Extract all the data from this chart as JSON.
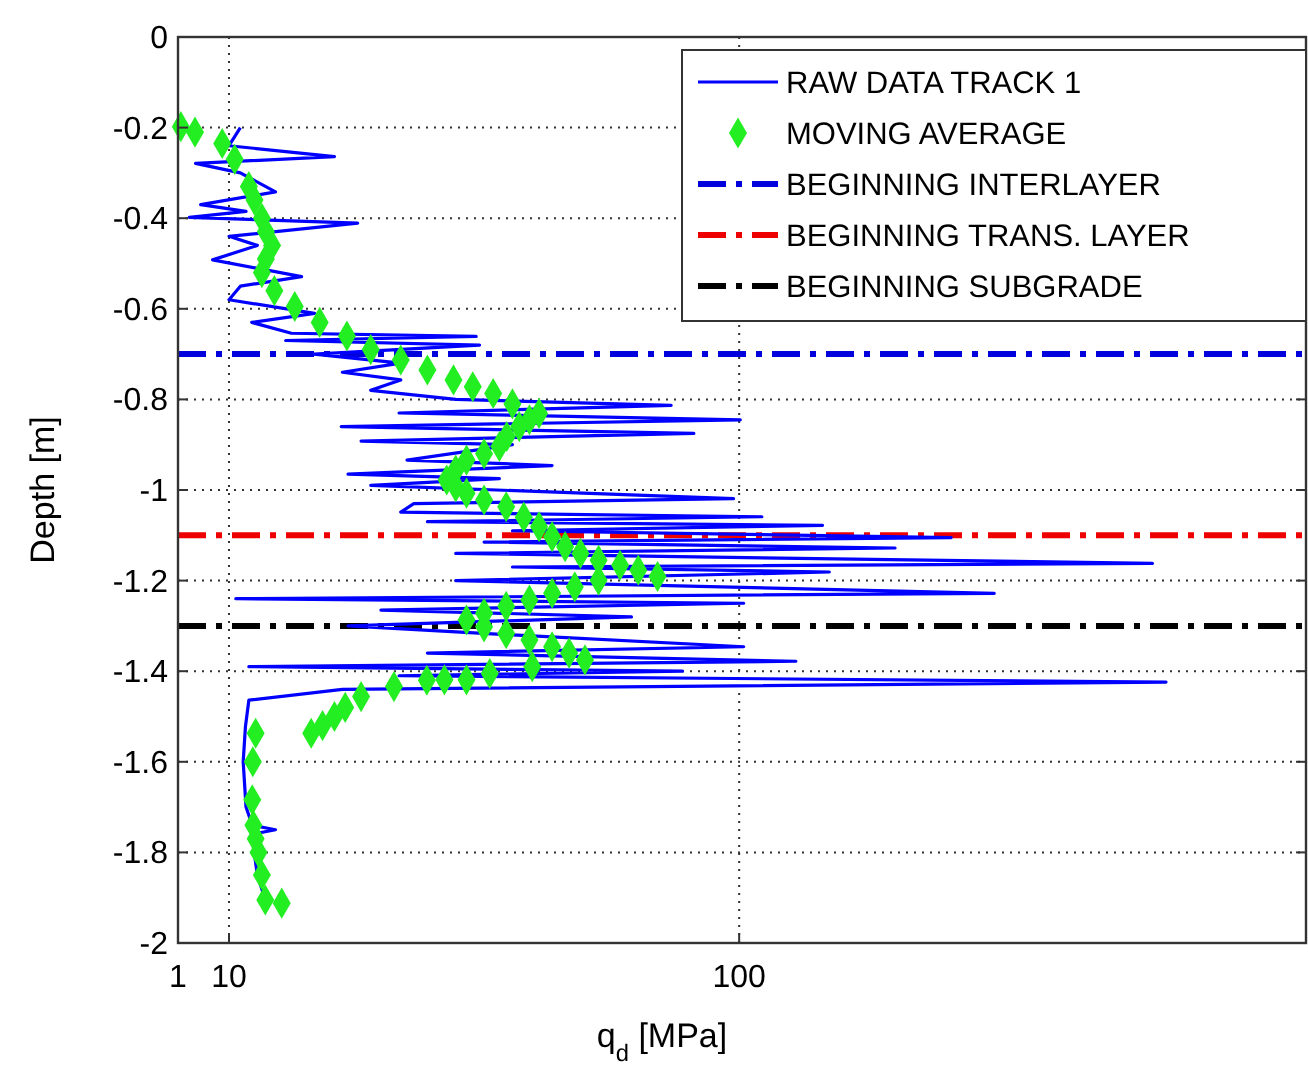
{
  "chart_data": {
    "type": "line",
    "xlabel": "q$_{d}$ [MPa]",
    "ylabel": "Depth [m]",
    "xlim": [
      1,
      200
    ],
    "xticks": [
      1,
      10,
      100
    ],
    "ylim": [
      -2,
      0
    ],
    "yticks": [
      0,
      -0.2,
      -0.4,
      -0.6,
      -0.8,
      -1,
      -1.2,
      -1.4,
      -1.6,
      -1.8,
      -2
    ],
    "grid": true,
    "legend": "top right",
    "series": [
      {
        "name": "RAW DATA TRACK 1",
        "color": "#0000ff",
        "marker": "none",
        "line_style": "solid",
        "x": [
          12,
          10,
          28.6,
          4.1,
          12,
          18.2,
          5,
          13,
          3,
          32.7,
          10,
          15,
          7.1,
          22.8,
          12,
          10,
          25.1,
          14,
          21,
          53.6,
          20,
          54.2,
          25,
          40.3,
          30,
          40.3,
          35,
          50,
          88,
          40,
          100.2,
          29.8,
          92,
          33.3,
          60,
          41.4,
          67,
          31,
          57.7,
          35,
          99,
          42.6,
          40.3,
          104,
          45,
          114.7,
          60,
          137.4,
          55,
          127.5,
          50,
          172.9,
          60,
          115.9,
          50,
          145,
          11.2,
          100.8,
          36.8,
          81,
          31,
          60,
          100.8,
          45,
          110,
          13.5,
          90,
          40,
          175.3,
          30,
          13.5,
          12.9,
          12.5,
          13,
          14.1,
          18.2,
          14,
          15,
          16.4
        ],
        "values": [
          -0.2,
          -0.24,
          -0.264,
          -0.279,
          -0.3,
          -0.342,
          -0.37,
          -0.385,
          -0.398,
          -0.411,
          -0.44,
          -0.46,
          -0.492,
          -0.529,
          -0.55,
          -0.58,
          -0.61,
          -0.63,
          -0.654,
          -0.661,
          -0.67,
          -0.68,
          -0.7,
          -0.72,
          -0.74,
          -0.757,
          -0.78,
          -0.8,
          -0.813,
          -0.83,
          -0.845,
          -0.86,
          -0.875,
          -0.892,
          -0.9,
          -0.934,
          -0.946,
          -0.965,
          -0.975,
          -0.99,
          -1.019,
          -1.03,
          -1.049,
          -1.059,
          -1.07,
          -1.078,
          -1.09,
          -1.105,
          -1.115,
          -1.128,
          -1.14,
          -1.162,
          -1.17,
          -1.181,
          -1.2,
          -1.228,
          -1.24,
          -1.25,
          -1.265,
          -1.28,
          -1.3,
          -1.32,
          -1.346,
          -1.36,
          -1.378,
          -1.39,
          -1.4,
          -1.41,
          -1.424,
          -1.44,
          -1.464,
          -1.522,
          -1.6,
          -1.7,
          -1.74,
          -1.75,
          -1.76,
          -1.85,
          -1.905
        ]
      },
      {
        "name": "MOVING AVERAGE",
        "type": "scatter",
        "color": "#22ee22",
        "marker": "diamond",
        "x": [
          1.5,
          4,
          8.8,
          11,
          13.5,
          14.5,
          15.8,
          16.5,
          17.6,
          16.5,
          15.8,
          18,
          21.6,
          26,
          30.8,
          35,
          40.3,
          45,
          49.6,
          53,
          56.6,
          60,
          64.7,
          63,
          61.2,
          59,
          57.7,
          55,
          51.9,
          50,
          48.4,
          50,
          51.9,
          55,
          58.9,
          62,
          64.7,
          67,
          69.3,
          72,
          75.2,
          79,
          82.2,
          85.6,
          75.2,
          71,
          67,
          63,
          58.9,
          55,
          51.9,
          55,
          58.9,
          63,
          67,
          70,
          72.8,
          63.5,
          56,
          51.9,
          48,
          44.9,
          39.1,
          33.3,
          30.5,
          28.6,
          26.5,
          24.5,
          14.7,
          14.2,
          14.1,
          14.3,
          14.7,
          15.2,
          15.8,
          16.4,
          19.3
        ],
        "values": [
          -0.198,
          -0.21,
          -0.235,
          -0.27,
          -0.33,
          -0.36,
          -0.4,
          -0.43,
          -0.46,
          -0.49,
          -0.52,
          -0.56,
          -0.595,
          -0.63,
          -0.66,
          -0.69,
          -0.713,
          -0.735,
          -0.757,
          -0.772,
          -0.787,
          -0.81,
          -0.831,
          -0.845,
          -0.86,
          -0.882,
          -0.904,
          -0.92,
          -0.934,
          -0.956,
          -0.978,
          -0.993,
          -1.007,
          -1.022,
          -1.037,
          -1.06,
          -1.081,
          -1.103,
          -1.125,
          -1.14,
          -1.155,
          -1.166,
          -1.177,
          -1.191,
          -1.199,
          -1.214,
          -1.228,
          -1.243,
          -1.257,
          -1.272,
          -1.287,
          -1.302,
          -1.317,
          -1.331,
          -1.346,
          -1.36,
          -1.375,
          -1.39,
          -1.405,
          -1.419,
          -1.419,
          -1.42,
          -1.434,
          -1.456,
          -1.48,
          -1.5,
          -1.52,
          -1.537,
          -1.537,
          -1.6,
          -1.684,
          -1.74,
          -1.77,
          -1.8,
          -1.85,
          -1.905,
          -1.912
        ]
      }
    ],
    "ref_lines": [
      {
        "axis": "y",
        "value": -0.7,
        "label": "BEGINNING INTERLAYER",
        "color": "#0000dd",
        "line_style": "dashed"
      },
      {
        "axis": "y",
        "value": -1.1,
        "label": "BEGINNING TRANS. LAYER",
        "color": "#ee0000",
        "line_style": "dashed"
      },
      {
        "axis": "y",
        "value": -1.3,
        "label": "BEGINNING SUBGRADE",
        "color": "#000000",
        "line_style": "dashed"
      }
    ]
  }
}
